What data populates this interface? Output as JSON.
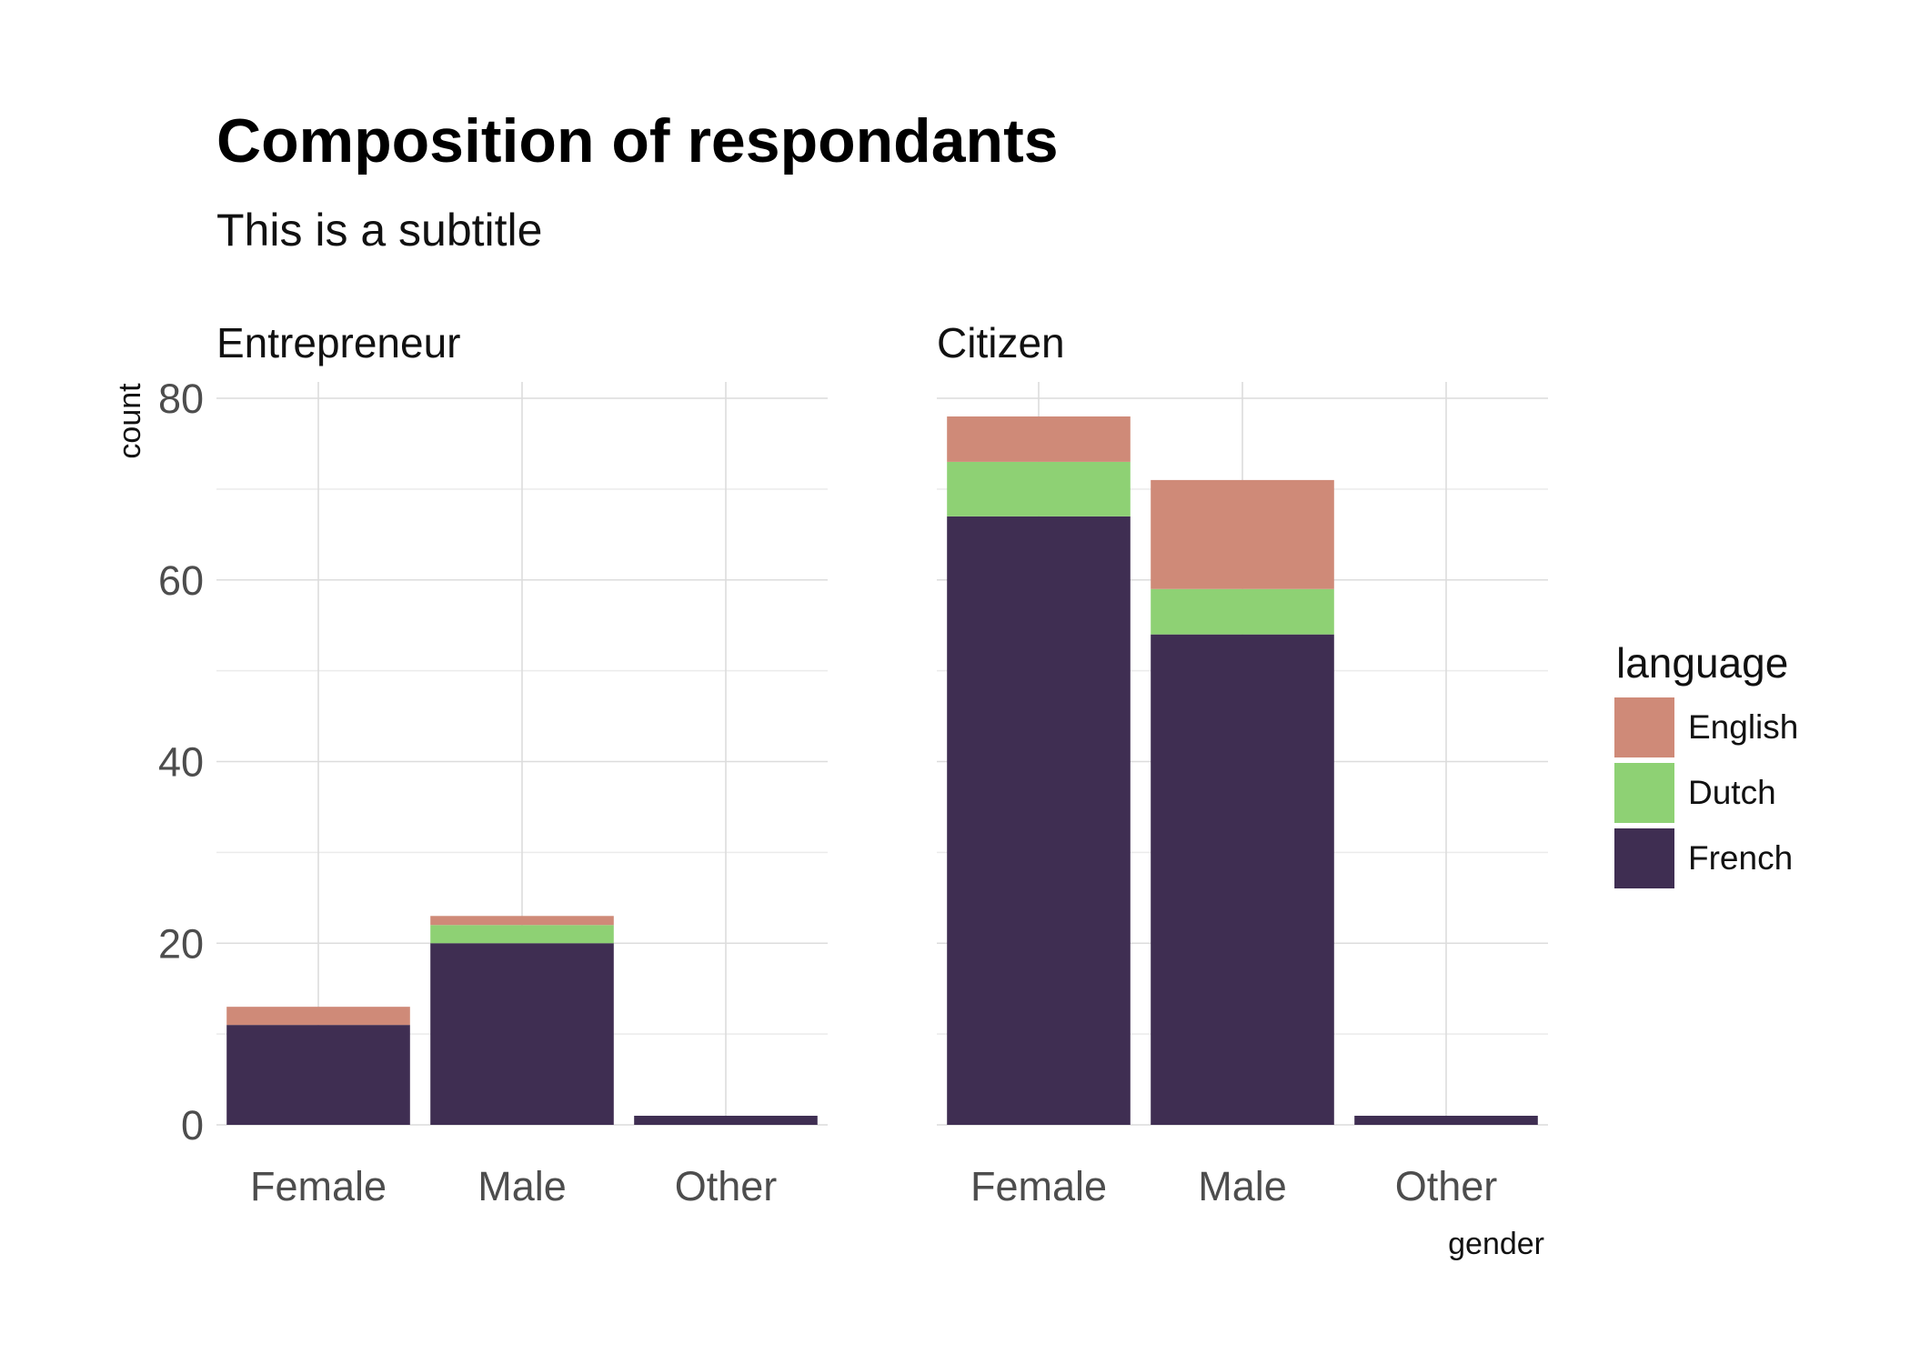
{
  "chart_data": {
    "type": "bar",
    "stacked": true,
    "title": "Composition of respondants",
    "subtitle": "This is a subtitle",
    "xlabel": "gender",
    "ylabel": "count",
    "ylim": [
      0,
      80
    ],
    "yticks": [
      "0",
      "20",
      "40",
      "60",
      "80"
    ],
    "grid": true,
    "legend": {
      "title": "language",
      "position": "right",
      "entries": [
        {
          "name": "English",
          "color": "#cf8a78"
        },
        {
          "name": "Dutch",
          "color": "#8ed174"
        },
        {
          "name": "French",
          "color": "#3f2e52"
        }
      ]
    },
    "categories": [
      "Female",
      "Male",
      "Other"
    ],
    "facets": [
      {
        "label": "Entrepreneur",
        "series": [
          {
            "name": "French",
            "values": [
              11,
              20,
              1
            ]
          },
          {
            "name": "Dutch",
            "values": [
              0,
              2,
              0
            ]
          },
          {
            "name": "English",
            "values": [
              2,
              1,
              0
            ]
          }
        ]
      },
      {
        "label": "Citizen",
        "series": [
          {
            "name": "French",
            "values": [
              67,
              54,
              1
            ]
          },
          {
            "name": "Dutch",
            "values": [
              6,
              5,
              0
            ]
          },
          {
            "name": "English",
            "values": [
              5,
              12,
              0
            ]
          }
        ]
      }
    ]
  }
}
